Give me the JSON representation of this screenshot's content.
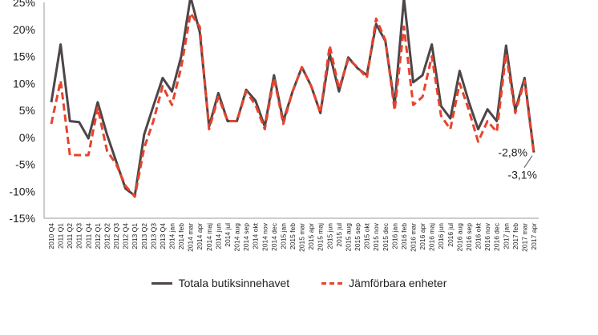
{
  "chart_data": {
    "type": "line",
    "categories": [
      "2010 Q4",
      "2011 Q1",
      "2011 Q2",
      "2011 Q3",
      "2011 Q4",
      "2012 Q1",
      "2012 Q2",
      "2012 Q3",
      "2012 Q4",
      "2013 Q1",
      "2013 Q2",
      "2013 Q3",
      "2013 Q4",
      "2014 jan",
      "2014 feb",
      "2014 mar",
      "2014 apr",
      "2014 maj",
      "2014 jun",
      "2014 jul",
      "2014 aug",
      "2014 sep",
      "2014 okt",
      "2014 nov",
      "2014 dec",
      "2015 jan",
      "2015 feb",
      "2015 mar",
      "2015 apr",
      "2015 maj",
      "2015 jun",
      "2015 jul",
      "2015 aug",
      "2015 sep",
      "2015 okt",
      "2015 nov",
      "2015 dec",
      "2016 jan",
      "2016 feb",
      "2016 mar",
      "2016 apr",
      "2016 maj",
      "2016 jun",
      "2016 jul",
      "2016 aug",
      "2016 sep",
      "2016 okt",
      "2016 nov",
      "2016 dec",
      "2017 jan",
      "2017 feb",
      "2017 mar",
      "2017 apr"
    ],
    "series": [
      {
        "name": "Totala butiksinnehavet",
        "color": "#4d4548",
        "style": "solid",
        "values": [
          6.5,
          17.2,
          3,
          2.8,
          -0.2,
          6.5,
          0.5,
          -4.5,
          -9.5,
          -10.8,
          0.5,
          5.8,
          11,
          8.5,
          15,
          26,
          19.5,
          2,
          8.2,
          3,
          3,
          8.8,
          6.8,
          2,
          11.5,
          3,
          8.5,
          13,
          9.5,
          4.5,
          15.5,
          8.5,
          14.8,
          12.8,
          11.5,
          21,
          17.8,
          6,
          25.8,
          10.2,
          11.5,
          17.2,
          5.8,
          3.5,
          12.3,
          6.5,
          1.5,
          5.2,
          3,
          17,
          5,
          11,
          -2.8
        ]
      },
      {
        "name": "Jämförbara enheter",
        "color": "#e8432c",
        "style": "dashed",
        "values": [
          2.5,
          10.5,
          -3.3,
          -3.3,
          -3.3,
          5.5,
          -2.5,
          -5,
          -9,
          -11,
          -2,
          3,
          9.5,
          6,
          13,
          23,
          20.5,
          1.5,
          7.5,
          3,
          3,
          8.5,
          6,
          1.5,
          11,
          2.5,
          8.5,
          13,
          9.5,
          4.5,
          17,
          9,
          14.5,
          13,
          11,
          22,
          18,
          5,
          20.5,
          6,
          7.5,
          15,
          4,
          1.5,
          10,
          5,
          -0.8,
          3,
          1,
          15.5,
          4.5,
          10.5,
          -3.1
        ]
      }
    ],
    "ylim": [
      -15,
      25
    ],
    "yticks": [
      "-15%",
      "-10%",
      "-5%",
      "0%",
      "5%",
      "10%",
      "15%",
      "20%",
      "25%"
    ],
    "annotations": [
      {
        "text": "-2,8%",
        "series": 0,
        "index": 52
      },
      {
        "text": "-3,1%",
        "series": 1,
        "index": 52
      }
    ],
    "legend_position": "bottom",
    "grid": false
  }
}
